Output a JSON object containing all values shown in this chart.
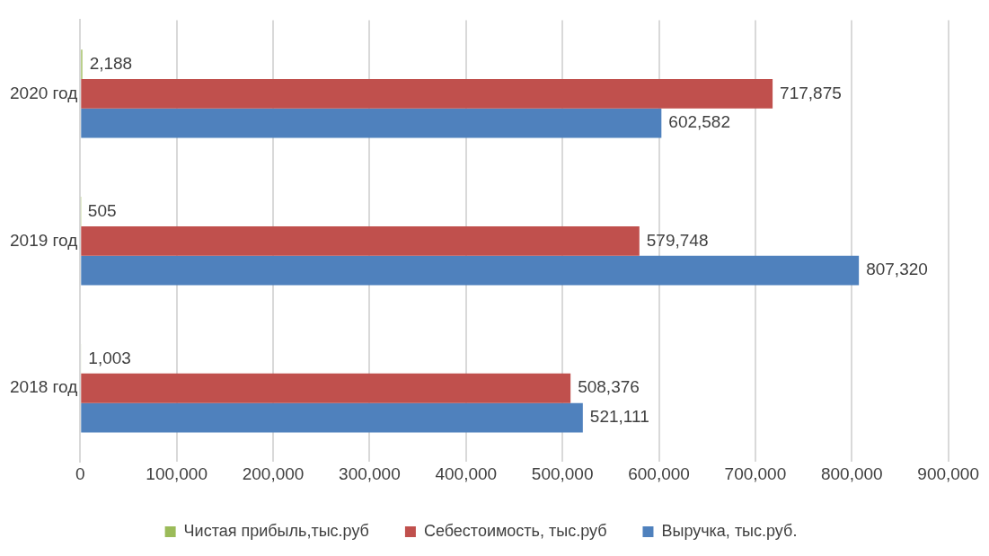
{
  "chart_data": {
    "type": "bar",
    "orientation": "horizontal",
    "categories": [
      "2020 год",
      "2019 год",
      "2018 год"
    ],
    "series": [
      {
        "name": "Чистая прибыль,тыс.руб",
        "color": "#9bbb59",
        "values": [
          2188,
          505,
          1003
        ],
        "value_labels": [
          "2,188",
          "505",
          "1,003"
        ]
      },
      {
        "name": "Себестоимость, тыс.руб",
        "color": "#c0504d",
        "values": [
          717875,
          579748,
          508376
        ],
        "value_labels": [
          "717,875",
          "579,748",
          "508,376"
        ]
      },
      {
        "name": "Выручка, тыс.руб.",
        "color": "#4f81bd",
        "values": [
          602582,
          807320,
          521111
        ],
        "value_labels": [
          "602,582",
          "807,320",
          "521,111"
        ]
      }
    ],
    "xlim": [
      0,
      900000
    ],
    "xticks": [
      0,
      {
        "value": 100000,
        "label": "100,000"
      },
      {
        "value": 200000,
        "label": "200,000"
      },
      {
        "value": 300000,
        "label": "300,000"
      },
      {
        "value": 400000,
        "label": "400,000"
      },
      {
        "value": 500000,
        "label": "500,000"
      },
      {
        "value": 600000,
        "label": "600,000"
      },
      {
        "value": 700000,
        "label": "700,000"
      },
      {
        "value": 800000,
        "label": "800,000"
      },
      {
        "value": 900000,
        "label": "900,000"
      }
    ],
    "grid": "x",
    "legend": "bottom"
  }
}
